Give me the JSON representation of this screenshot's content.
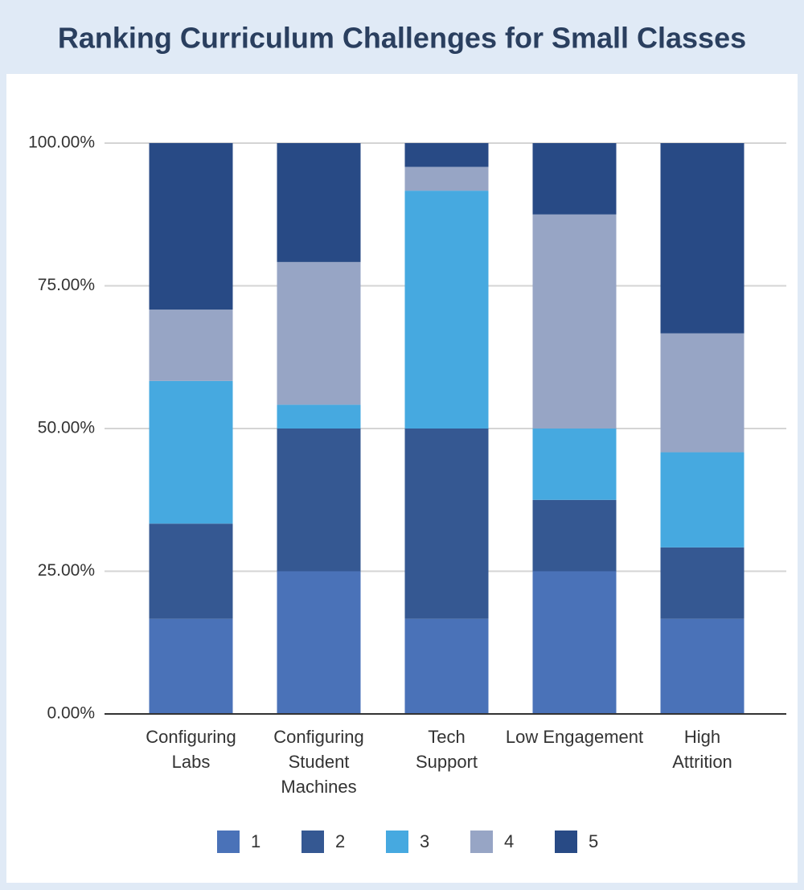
{
  "chart_data": {
    "type": "stacked_bar",
    "title": "Ranking Curriculum Challenges for Small Classes",
    "categories": [
      [
        "Configuring",
        "Labs"
      ],
      [
        "Configuring",
        "Student",
        "Machines"
      ],
      [
        "Tech",
        "Support"
      ],
      [
        "Low Engagement"
      ],
      [
        "High",
        "Attrition"
      ]
    ],
    "series": [
      {
        "name": "1",
        "color": "#4a72b8",
        "values": [
          16.67,
          25,
          16.67,
          25,
          16.67
        ]
      },
      {
        "name": "2",
        "color": "#355892",
        "values": [
          16.67,
          25,
          33.33,
          12.5,
          12.5
        ]
      },
      {
        "name": "3",
        "color": "#46a9e0",
        "values": [
          25,
          4.17,
          41.67,
          12.5,
          16.67
        ]
      },
      {
        "name": "4",
        "color": "#97a5c5",
        "values": [
          12.5,
          25,
          4.17,
          37.5,
          20.83
        ]
      },
      {
        "name": "5",
        "color": "#284a85",
        "values": [
          29.17,
          20.83,
          4.17,
          12.5,
          33.33
        ]
      }
    ],
    "ylim": [
      0,
      100
    ],
    "yticks": [
      {
        "value": 0,
        "label": "0.00%"
      },
      {
        "value": 25,
        "label": "25.00%"
      },
      {
        "value": 50,
        "label": "50.00%"
      },
      {
        "value": 75,
        "label": "75.00%"
      },
      {
        "value": 100,
        "label": "100.00%"
      }
    ],
    "grid": true
  }
}
